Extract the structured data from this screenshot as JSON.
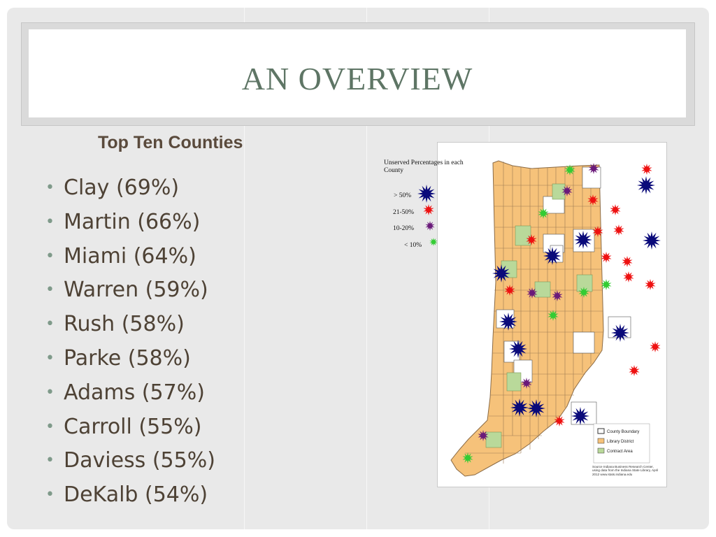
{
  "slide": {
    "title": "AN OVERVIEW",
    "subheading": "Top Ten Counties",
    "counties": [
      "Clay (69%)",
      "Martin (66%)",
      "Miami (64%)",
      "Warren (59%)",
      "Rush (58%)",
      "Parke (58%)",
      "Adams (57%)",
      "Carroll (55%)",
      "Daviess (55%)",
      "DeKalb (54%)"
    ]
  },
  "map": {
    "legend_title": "Unserved Percentages in each County",
    "legend": [
      {
        "label": "> 50%",
        "color": "#0a0a7a"
      },
      {
        "label": "21-50%",
        "color": "#ee1111"
      },
      {
        "label": "10-20%",
        "color": "#6a1a7a"
      },
      {
        "label": "< 10%",
        "color": "#33cc33"
      }
    ],
    "key_items": [
      "County Boundary",
      "Library District",
      "Contract Area"
    ],
    "key_colors": {
      "boundary": "#ffffff",
      "library_district": "#f6c27a",
      "contract_area": "#b9d99a"
    },
    "source_note": "Source Indiana Business Research Center, using data from the Indiana State Library, April 2012 www.stats.indiana.edu"
  },
  "colors": {
    "background": "#e9e9e9",
    "title_text": "#5e7565",
    "body_text": "#4e4235",
    "bullet": "#7f9a8a"
  }
}
